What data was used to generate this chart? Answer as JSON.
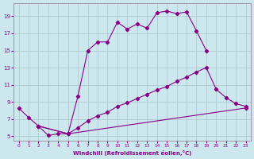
{
  "xlabel": "Windchill (Refroidissement éolien,°C)",
  "bg_color": "#cce8ee",
  "line_color": "#880088",
  "grid_color": "#b0ccd0",
  "xlim": [
    -0.5,
    23.5
  ],
  "ylim": [
    4.5,
    20.5
  ],
  "xticks": [
    0,
    1,
    2,
    3,
    4,
    5,
    6,
    7,
    8,
    9,
    10,
    11,
    12,
    13,
    14,
    15,
    16,
    17,
    18,
    19,
    20,
    21,
    22,
    23
  ],
  "yticks": [
    5,
    7,
    9,
    11,
    13,
    15,
    17,
    19
  ],
  "line1_x": [
    0,
    1,
    2,
    3,
    4,
    5,
    6,
    7,
    8,
    9,
    10,
    11,
    12,
    13,
    14,
    15,
    16,
    17,
    18,
    19
  ],
  "line1_y": [
    8.3,
    7.2,
    6.2,
    5.1,
    5.3,
    5.3,
    9.7,
    15.0,
    16.0,
    16.0,
    18.3,
    17.5,
    18.1,
    17.6,
    19.4,
    19.6,
    19.3,
    19.5,
    17.3,
    15.0
  ],
  "line2_x": [
    2,
    5,
    6,
    7,
    8,
    9,
    10,
    11,
    12,
    13,
    14,
    15,
    16,
    17,
    18,
    19,
    20,
    21,
    22,
    23
  ],
  "line2_y": [
    6.2,
    5.3,
    6.0,
    6.8,
    7.4,
    7.8,
    8.5,
    8.9,
    9.4,
    9.9,
    10.4,
    10.8,
    11.4,
    11.9,
    12.5,
    13.0,
    10.5,
    9.5,
    8.8,
    8.5
  ],
  "line3_x": [
    2,
    5,
    23
  ],
  "line3_y": [
    6.2,
    5.3,
    8.3
  ]
}
